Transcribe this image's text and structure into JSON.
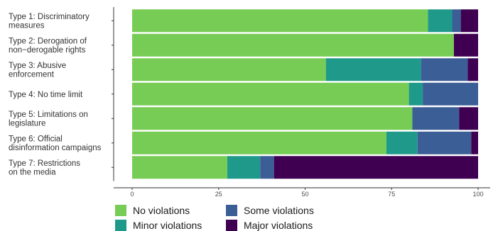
{
  "chart_data": {
    "type": "bar",
    "orientation": "horizontal",
    "stacked": true,
    "categories": [
      [
        "Type 1: Discriminatory",
        "measures"
      ],
      [
        "Type 2: Derogation of",
        "non−derogable rights"
      ],
      [
        "Type 3: Abusive",
        "enforcement"
      ],
      [
        "Type 4: No time limit"
      ],
      [
        "Type 5: Limitations on",
        "legislature"
      ],
      [
        "Type 6: Official",
        "disinformation campaigns"
      ],
      [
        "Type 7: Restrictions",
        "on the media"
      ]
    ],
    "series": [
      {
        "name": "No violations",
        "color": "#77cc55",
        "values": [
          85.5,
          93.0,
          56.0,
          80.0,
          81.0,
          73.5,
          27.5
        ]
      },
      {
        "name": "Minor violations",
        "color": "#1f9a8a",
        "values": [
          7.0,
          0.0,
          27.5,
          4.0,
          0.0,
          9.0,
          9.5
        ]
      },
      {
        "name": "Some violations",
        "color": "#3b5e96",
        "values": [
          2.5,
          0.0,
          13.5,
          16.0,
          13.5,
          15.5,
          4.0
        ]
      },
      {
        "name": "Major violations",
        "color": "#3f0052",
        "values": [
          5.0,
          7.0,
          3.0,
          0.0,
          5.5,
          2.0,
          59.0
        ]
      }
    ],
    "xlim": [
      0,
      100
    ],
    "xticks": [
      0,
      25,
      50,
      75,
      100
    ],
    "xtick_labels": [
      "0",
      "25",
      "50",
      "75",
      "100"
    ],
    "grid": false,
    "legend_position": "bottom-left",
    "title": "",
    "xlabel": "",
    "ylabel": ""
  }
}
